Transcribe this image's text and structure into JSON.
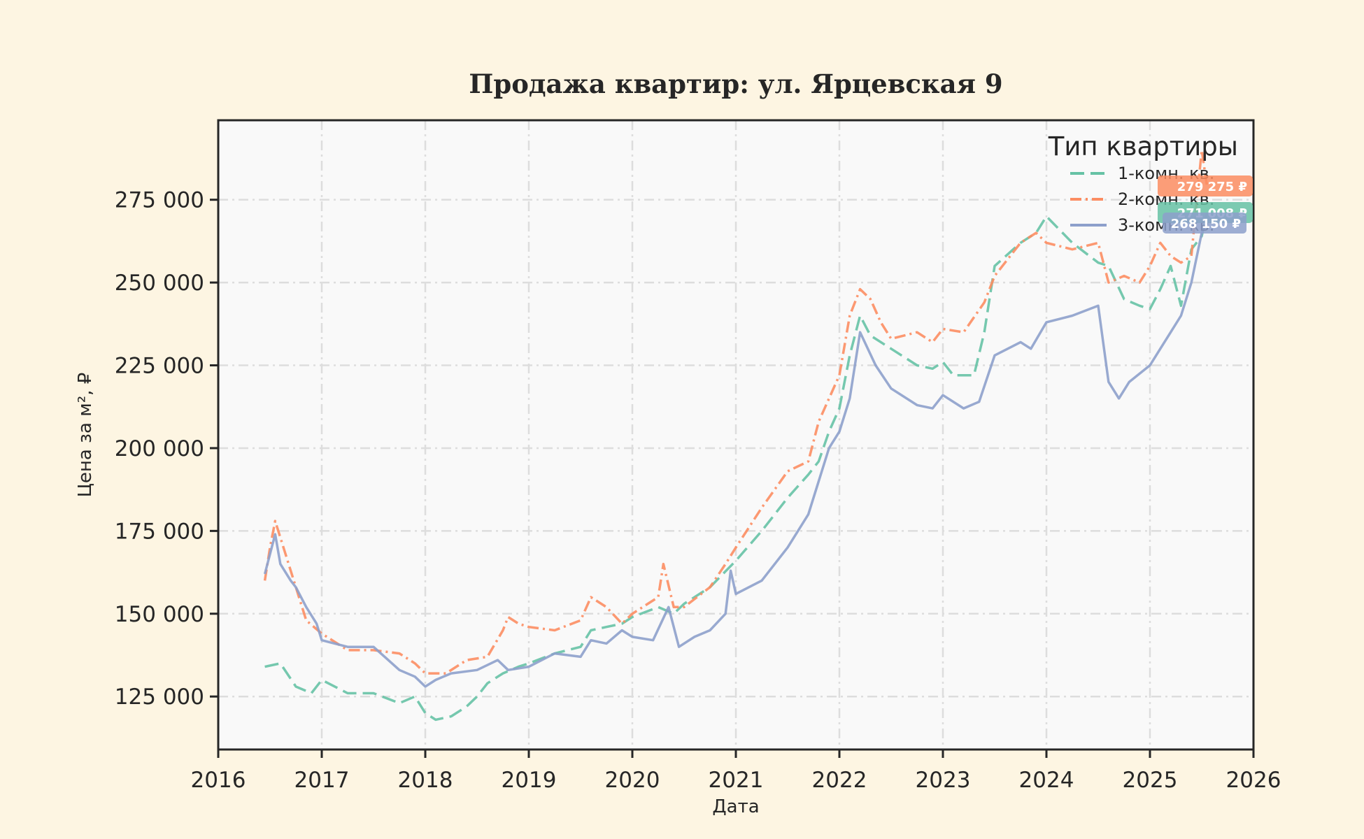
{
  "chart_data": {
    "type": "line",
    "title": "Продажа квартир: ул. Ярцевская 9",
    "xlabel": "Дата",
    "ylabel": "Цена за м², ₽",
    "xlim": [
      2016.0,
      2026.0
    ],
    "ylim": [
      109000,
      299000
    ],
    "x_ticks": [
      2016,
      2017,
      2018,
      2019,
      2020,
      2021,
      2022,
      2023,
      2024,
      2025,
      2026
    ],
    "x_tick_labels": [
      "2016",
      "2017",
      "2018",
      "2019",
      "2020",
      "2021",
      "2022",
      "2023",
      "2024",
      "2025",
      "2026"
    ],
    "y_ticks": [
      125000,
      150000,
      175000,
      200000,
      225000,
      250000,
      275000
    ],
    "y_tick_labels": [
      "125 000",
      "150 000",
      "175 000",
      "200 000",
      "225 000",
      "250 000",
      "275 000"
    ],
    "grid": true,
    "legend": {
      "title": "Тип квартиры",
      "position": "top-right"
    },
    "series": [
      {
        "name": "1-комн. кв.",
        "color": "#66c2a5",
        "dash": "dashed",
        "end_label": "271 008 ₽",
        "x": [
          2016.45,
          2016.6,
          2016.75,
          2016.9,
          2017.0,
          2017.25,
          2017.5,
          2017.75,
          2017.9,
          2018.0,
          2018.1,
          2018.25,
          2018.4,
          2018.5,
          2018.6,
          2018.75,
          2018.9,
          2019.0,
          2019.25,
          2019.5,
          2019.6,
          2019.75,
          2019.9,
          2020.0,
          2020.25,
          2020.4,
          2020.5,
          2020.75,
          2021.0,
          2021.25,
          2021.5,
          2021.7,
          2021.8,
          2021.9,
          2022.0,
          2022.1,
          2022.2,
          2022.3,
          2022.5,
          2022.75,
          2022.9,
          2023.0,
          2023.1,
          2023.3,
          2023.4,
          2023.5,
          2023.75,
          2023.9,
          2024.0,
          2024.25,
          2024.5,
          2024.6,
          2024.75,
          2024.9,
          2025.0,
          2025.1,
          2025.2,
          2025.3,
          2025.4,
          2025.5,
          2025.55
        ],
        "y": [
          134000,
          135000,
          128000,
          126000,
          130000,
          126000,
          126000,
          123000,
          125000,
          120000,
          118000,
          119000,
          122000,
          125000,
          129000,
          132000,
          134000,
          135000,
          138000,
          140000,
          145000,
          146000,
          147000,
          149000,
          152000,
          150000,
          153000,
          158000,
          166000,
          175000,
          185000,
          192000,
          196000,
          205000,
          212000,
          228000,
          240000,
          234000,
          230000,
          225000,
          224000,
          226000,
          222000,
          222000,
          235000,
          255000,
          262000,
          265000,
          270000,
          262000,
          256000,
          255000,
          245000,
          243000,
          242000,
          248000,
          255000,
          243000,
          260000,
          264000,
          271008
        ]
      },
      {
        "name": "2-комн. кв.",
        "color": "#fc8d62",
        "dash": "dashdot",
        "end_label": "279 275 ₽",
        "x": [
          2016.45,
          2016.5,
          2016.55,
          2016.65,
          2016.75,
          2016.85,
          2017.0,
          2017.25,
          2017.5,
          2017.75,
          2017.9,
          2018.0,
          2018.2,
          2018.4,
          2018.6,
          2018.75,
          2018.8,
          2018.9,
          2019.0,
          2019.25,
          2019.5,
          2019.6,
          2019.75,
          2019.9,
          2020.0,
          2020.25,
          2020.3,
          2020.4,
          2020.5,
          2020.75,
          2020.9,
          2021.0,
          2021.25,
          2021.5,
          2021.7,
          2021.8,
          2021.9,
          2022.0,
          2022.1,
          2022.2,
          2022.3,
          2022.4,
          2022.5,
          2022.75,
          2022.9,
          2023.0,
          2023.2,
          2023.4,
          2023.5,
          2023.75,
          2023.9,
          2024.0,
          2024.25,
          2024.5,
          2024.6,
          2024.75,
          2024.9,
          2025.0,
          2025.1,
          2025.2,
          2025.3,
          2025.4,
          2025.5,
          2025.55
        ],
        "y": [
          160000,
          170000,
          178000,
          168000,
          158000,
          148000,
          144000,
          139000,
          139000,
          138000,
          135000,
          132000,
          132000,
          136000,
          137000,
          145000,
          149000,
          147000,
          146000,
          145000,
          148000,
          155000,
          152000,
          147000,
          150000,
          155000,
          165000,
          152000,
          152000,
          158000,
          165000,
          170000,
          182000,
          193000,
          196000,
          208000,
          215000,
          222000,
          240000,
          248000,
          245000,
          238000,
          233000,
          235000,
          232000,
          236000,
          235000,
          244000,
          252000,
          262000,
          265000,
          262000,
          260000,
          262000,
          250000,
          252000,
          250000,
          255000,
          262000,
          258000,
          256000,
          258000,
          290000,
          279275
        ]
      },
      {
        "name": "3-комн. кв.",
        "color": "#8da0cb",
        "dash": "solid",
        "end_label": "268 150 ₽",
        "x": [
          2016.45,
          2016.5,
          2016.55,
          2016.6,
          2016.7,
          2016.75,
          2016.85,
          2016.95,
          2017.0,
          2017.25,
          2017.5,
          2017.75,
          2017.9,
          2018.0,
          2018.1,
          2018.25,
          2018.5,
          2018.7,
          2018.8,
          2019.0,
          2019.25,
          2019.5,
          2019.6,
          2019.75,
          2019.9,
          2020.0,
          2020.2,
          2020.35,
          2020.45,
          2020.6,
          2020.75,
          2020.9,
          2020.95,
          2021.0,
          2021.25,
          2021.5,
          2021.7,
          2021.8,
          2021.9,
          2022.0,
          2022.1,
          2022.2,
          2022.35,
          2022.5,
          2022.75,
          2022.9,
          2023.0,
          2023.2,
          2023.35,
          2023.5,
          2023.75,
          2023.85,
          2024.0,
          2024.25,
          2024.5,
          2024.6,
          2024.7,
          2024.8,
          2025.0,
          2025.1,
          2025.2,
          2025.3,
          2025.4,
          2025.5,
          2025.55
        ],
        "y": [
          162000,
          168000,
          174000,
          165000,
          160000,
          158000,
          152000,
          147000,
          142000,
          140000,
          140000,
          133000,
          131000,
          128000,
          130000,
          132000,
          133000,
          136000,
          133000,
          134000,
          138000,
          137000,
          142000,
          141000,
          145000,
          143000,
          142000,
          152000,
          140000,
          143000,
          145000,
          150000,
          163000,
          156000,
          160000,
          170000,
          180000,
          190000,
          200000,
          205000,
          215000,
          235000,
          225000,
          218000,
          213000,
          212000,
          216000,
          212000,
          214000,
          228000,
          232000,
          230000,
          238000,
          240000,
          243000,
          220000,
          215000,
          220000,
          225000,
          230000,
          235000,
          240000,
          250000,
          265000,
          268150
        ]
      }
    ]
  }
}
